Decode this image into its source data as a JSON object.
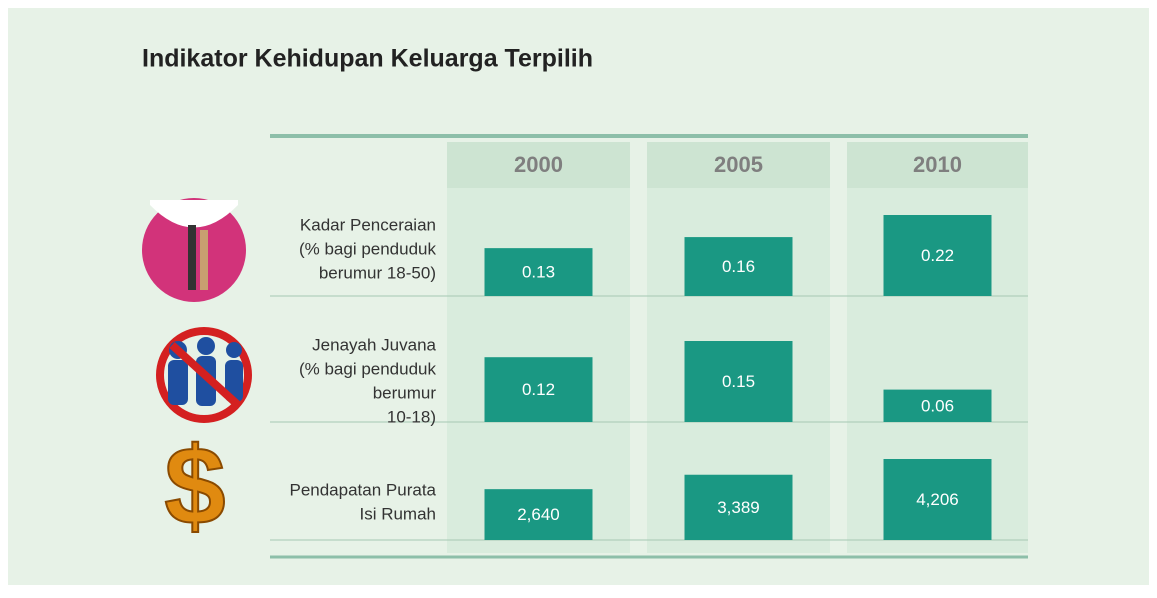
{
  "title": "Indikator Kehidupan Keluarga Terpilih",
  "columns": [
    "2000",
    "2005",
    "2010"
  ],
  "rows": [
    {
      "label": [
        "Kadar Penceraian",
        "(% bagi penduduk",
        "berumur 18-50)"
      ],
      "values": [
        0.13,
        0.16,
        0.22
      ]
    },
    {
      "label": [
        "Jenayah Juvana",
        "(% bagi penduduk",
        "berumur",
        "10-18)"
      ],
      "values": [
        0.12,
        0.15,
        0.06
      ]
    },
    {
      "label": [
        "Pendapatan Purata",
        "Isi Rumah"
      ],
      "values": [
        2640,
        3389,
        4206
      ],
      "value_labels": [
        "2,640",
        "3,389",
        "4,206"
      ]
    }
  ]
}
